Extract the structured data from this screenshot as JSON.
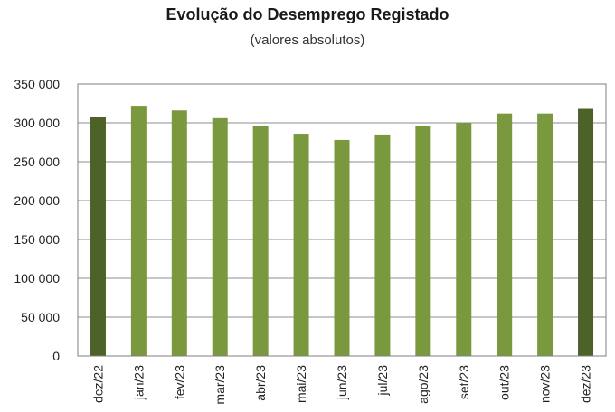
{
  "chart_data": {
    "type": "bar",
    "title": "Evolução do Desemprego Registado",
    "subtitle": "(valores absolutos)",
    "xlabel": "",
    "ylabel": "",
    "categories": [
      "dez/22",
      "jan/23",
      "fev/23",
      "mar/23",
      "abr/23",
      "mai/23",
      "jun/23",
      "jul/23",
      "ago/23",
      "set/23",
      "out/23",
      "nov/23",
      "dez/23"
    ],
    "values": [
      307000,
      322000,
      316000,
      306000,
      296000,
      286000,
      278000,
      285000,
      296000,
      300000,
      312000,
      312000,
      318000
    ],
    "ylim": [
      0,
      350000
    ],
    "yticks": [
      {
        "value": 0,
        "label": "0"
      },
      {
        "value": 50000,
        "label": "50 000"
      },
      {
        "value": 100000,
        "label": "100 000"
      },
      {
        "value": 150000,
        "label": "150 000"
      },
      {
        "value": 200000,
        "label": "200 000"
      },
      {
        "value": 250000,
        "label": "250 000"
      },
      {
        "value": 300000,
        "label": "300 000"
      },
      {
        "value": 350000,
        "label": "350 000"
      }
    ],
    "grid": true,
    "colors": {
      "highlight": "#4c6229",
      "normal": "#7a993e",
      "grid": "#8c8c8c",
      "frame": "#7f7f7f"
    },
    "highlight_indices": [
      0,
      12
    ]
  }
}
